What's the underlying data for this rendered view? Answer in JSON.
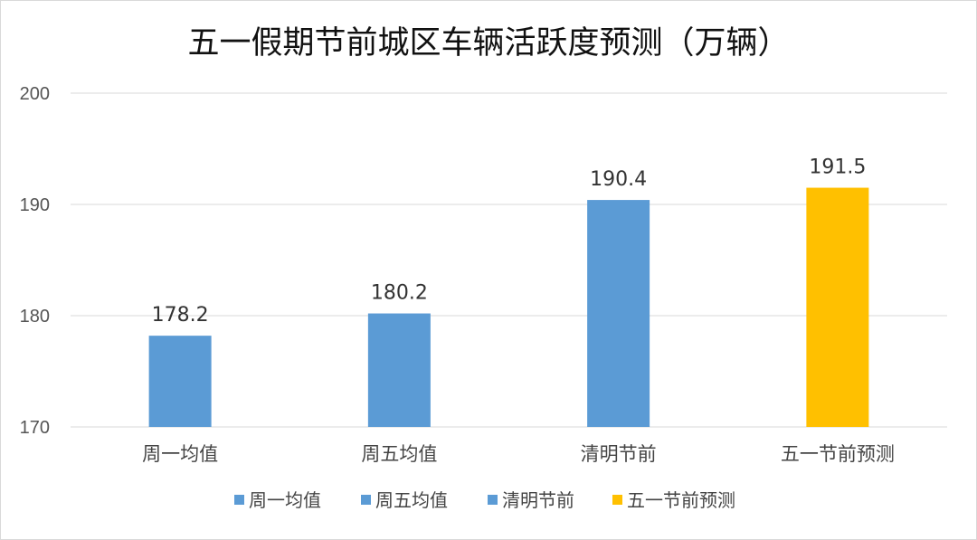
{
  "chart_data": {
    "type": "bar",
    "title": "五一假期节前城区车辆活跃度预测（万辆）",
    "categories": [
      "周一均值",
      "周五均值",
      "清明节前",
      "五一节前预测"
    ],
    "values": [
      178.2,
      180.2,
      190.4,
      191.5
    ],
    "data_labels": [
      "178.2",
      "180.2",
      "190.4",
      "191.5"
    ],
    "ylim": [
      170,
      200
    ],
    "yticks": [
      170,
      180,
      190,
      200
    ],
    "ytick_labels": [
      "170",
      "180",
      "190",
      "200"
    ],
    "grid": true,
    "legend_position": "bottom",
    "legend": [
      "周一均值",
      "周五均值",
      "清明节前",
      "五一节前预测"
    ],
    "bar_colors": [
      "#5B9BD5",
      "#5B9BD5",
      "#5B9BD5",
      "#FFC000"
    ]
  }
}
